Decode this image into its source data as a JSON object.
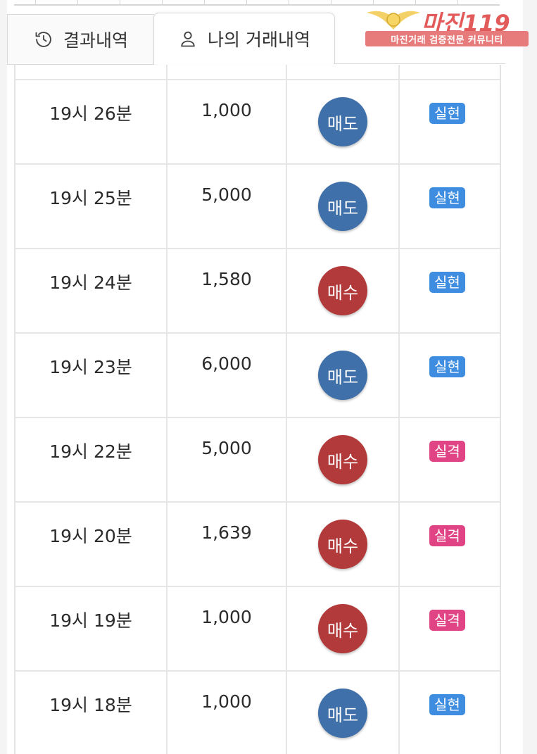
{
  "tabs": {
    "results": "결과내역",
    "my_trades": "나의 거래내역"
  },
  "logo": {
    "title": "마진119",
    "subtitle": "마진거래 검증전문 커뮤니티"
  },
  "colors": {
    "sell": "#3f70a9",
    "buy": "#b33a3a",
    "realized": "#3f8de0",
    "failed": "#e04484"
  },
  "rows": [
    {
      "time": "19시 26분",
      "amount": "1,000",
      "side": "매도",
      "side_type": "sell",
      "result": "실현",
      "result_type": "real"
    },
    {
      "time": "19시 25분",
      "amount": "5,000",
      "side": "매도",
      "side_type": "sell",
      "result": "실현",
      "result_type": "real"
    },
    {
      "time": "19시 24분",
      "amount": "1,580",
      "side": "매수",
      "side_type": "buy",
      "result": "실현",
      "result_type": "real"
    },
    {
      "time": "19시 23분",
      "amount": "6,000",
      "side": "매도",
      "side_type": "sell",
      "result": "실현",
      "result_type": "real"
    },
    {
      "time": "19시 22분",
      "amount": "5,000",
      "side": "매수",
      "side_type": "buy",
      "result": "실격",
      "result_type": "fail"
    },
    {
      "time": "19시 20분",
      "amount": "1,639",
      "side": "매수",
      "side_type": "buy",
      "result": "실격",
      "result_type": "fail"
    },
    {
      "time": "19시 19분",
      "amount": "1,000",
      "side": "매수",
      "side_type": "buy",
      "result": "실격",
      "result_type": "fail"
    },
    {
      "time": "19시 18분",
      "amount": "1,000",
      "side": "매도",
      "side_type": "sell",
      "result": "실현",
      "result_type": "real"
    }
  ]
}
